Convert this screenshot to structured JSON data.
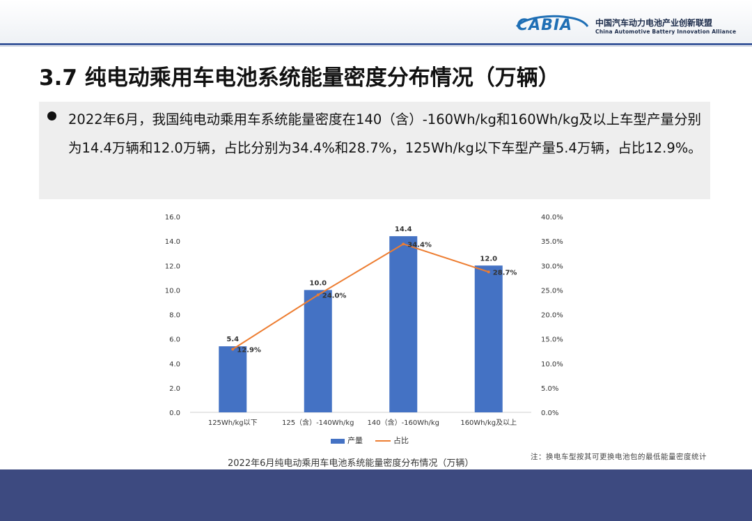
{
  "header": {
    "logo_text": "CABIA",
    "org_name_cn": "中国汽车动力电池产业创新联盟",
    "org_name_en": "China Automotive Battery Innovation Alliance"
  },
  "title": "3.7 纯电动乘用车电池系统能量密度分布情况（万辆）",
  "summary": "2022年6月，我国纯电动乘用车系统能量密度在140（含）-160Wh/kg和160Wh/kg及以上车型产量分别为14.4万辆和12.0万辆，占比分别为34.4%和28.7%，125Wh/kg以下车型产量5.4万辆，占比12.9%。",
  "chart_data": {
    "type": "bar",
    "categories": [
      "125Wh/kg以下",
      "125（含）-140Wh/kg",
      "140（含）-160Wh/kg",
      "160Wh/kg及以上"
    ],
    "series": [
      {
        "name": "产量",
        "type": "bar",
        "axis": "left",
        "values": [
          5.4,
          10.0,
          14.4,
          12.0
        ],
        "labels": [
          "5.4",
          "10.0",
          "14.4",
          "12.0"
        ],
        "color": "#4472c4"
      },
      {
        "name": "占比",
        "type": "line",
        "axis": "right",
        "values": [
          12.9,
          24.0,
          34.4,
          28.7
        ],
        "labels": [
          "12.9%",
          "24.0%",
          "34.4%",
          "28.7%"
        ],
        "color": "#ed7d31"
      }
    ],
    "y_left": {
      "min": 0,
      "max": 16,
      "ticks": [
        "0.0",
        "2.0",
        "4.0",
        "6.0",
        "8.0",
        "10.0",
        "12.0",
        "14.0",
        "16.0"
      ]
    },
    "y_right": {
      "min": 0,
      "max": 40,
      "ticks": [
        "0.0%",
        "5.0%",
        "10.0%",
        "15.0%",
        "20.0%",
        "25.0%",
        "30.0%",
        "35.0%",
        "40.0%"
      ]
    },
    "legend_position": "bottom",
    "grid": false,
    "caption": "2022年6月纯电动乘用车电池系统能量密度分布情况（万辆）"
  },
  "note": "注：换电车型按其可更换电池包的最低能量密度统计"
}
